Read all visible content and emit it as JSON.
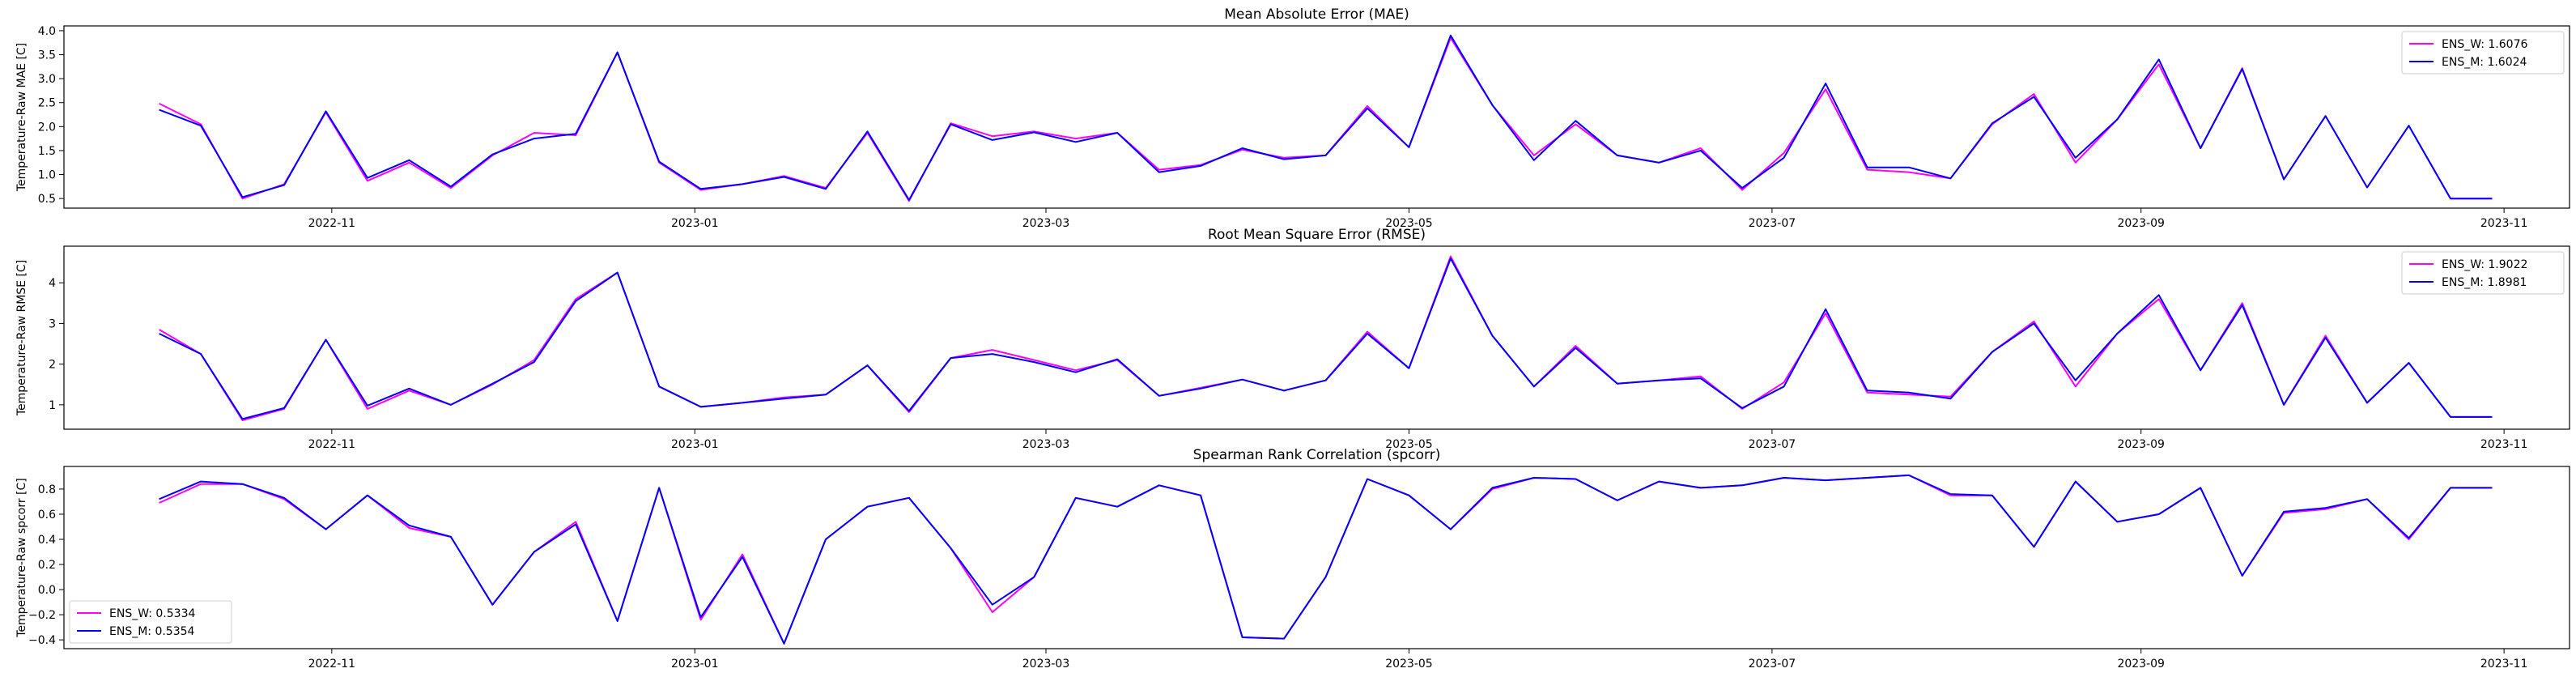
{
  "chart_data": [
    {
      "type": "line",
      "title": "Mean Absolute Error (MAE)",
      "xlabel": "",
      "ylabel": "Temperature-Raw MAE [C]",
      "ylim": [
        0.3,
        4.1
      ],
      "yticks": [
        "0.5",
        "1.0",
        "1.5",
        "2.0",
        "2.5",
        "3.0",
        "3.5",
        "4.0"
      ],
      "ytick_values": [
        0.5,
        1.0,
        1.5,
        2.0,
        2.5,
        3.0,
        3.5,
        4.0
      ],
      "xlim": [
        "2022-09-17",
        "2023-11-12"
      ],
      "xticks": [
        "2022-11",
        "2023-01",
        "2023-03",
        "2023-05",
        "2023-07",
        "2023-09",
        "2023-11"
      ],
      "xtick_dates": [
        "2022-11-01",
        "2023-01-01",
        "2023-03-01",
        "2023-05-01",
        "2023-07-01",
        "2023-09-01",
        "2023-11-01"
      ],
      "grid": false,
      "legend_position": "top-right",
      "x": [
        "2022-10-03",
        "2022-10-10",
        "2022-10-17",
        "2022-10-24",
        "2022-10-31",
        "2022-11-07",
        "2022-11-14",
        "2022-11-21",
        "2022-11-28",
        "2022-12-05",
        "2022-12-12",
        "2022-12-19",
        "2022-12-26",
        "2023-01-02",
        "2023-01-09",
        "2023-01-16",
        "2023-01-23",
        "2023-01-30",
        "2023-02-06",
        "2023-02-13",
        "2023-02-20",
        "2023-02-27",
        "2023-03-06",
        "2023-03-13",
        "2023-03-20",
        "2023-03-27",
        "2023-04-03",
        "2023-04-10",
        "2023-04-17",
        "2023-04-24",
        "2023-05-01",
        "2023-05-08",
        "2023-05-15",
        "2023-05-22",
        "2023-05-29",
        "2023-06-05",
        "2023-06-12",
        "2023-06-19",
        "2023-06-26",
        "2023-07-03",
        "2023-07-10",
        "2023-07-17",
        "2023-07-24",
        "2023-07-31",
        "2023-08-07",
        "2023-08-14",
        "2023-08-21",
        "2023-08-28",
        "2023-09-04",
        "2023-09-11",
        "2023-09-18",
        "2023-09-25",
        "2023-10-02",
        "2023-10-09",
        "2023-10-16",
        "2023-10-23",
        "2023-10-30"
      ],
      "series": [
        {
          "name": "ENS_W: 1.6076",
          "color": "#ff00ff",
          "values": [
            2.48,
            2.05,
            0.5,
            0.8,
            2.3,
            0.87,
            1.25,
            0.72,
            1.4,
            1.87,
            1.82,
            3.55,
            1.25,
            0.68,
            0.8,
            0.97,
            0.72,
            1.87,
            0.45,
            2.07,
            1.8,
            1.9,
            1.75,
            1.87,
            1.1,
            1.2,
            1.52,
            1.35,
            1.4,
            2.43,
            1.57,
            3.85,
            2.45,
            1.4,
            2.05,
            1.4,
            1.25,
            1.55,
            0.68,
            1.45,
            2.78,
            1.1,
            1.05,
            0.92,
            2.05,
            2.68,
            1.25,
            2.15,
            3.3,
            1.55,
            3.22,
            0.9,
            2.22,
            0.73,
            2.02,
            0.5,
            0.5
          ]
        },
        {
          "name": "ENS_M: 1.6024",
          "color": "#0000ff",
          "values": [
            2.35,
            2.02,
            0.53,
            0.78,
            2.32,
            0.93,
            1.3,
            0.75,
            1.42,
            1.75,
            1.85,
            3.55,
            1.27,
            0.7,
            0.8,
            0.95,
            0.7,
            1.9,
            0.47,
            2.05,
            1.72,
            1.88,
            1.68,
            1.87,
            1.05,
            1.18,
            1.55,
            1.32,
            1.4,
            2.38,
            1.57,
            3.9,
            2.45,
            1.3,
            2.12,
            1.4,
            1.25,
            1.5,
            0.72,
            1.35,
            2.9,
            1.15,
            1.15,
            0.92,
            2.07,
            2.62,
            1.35,
            2.15,
            3.4,
            1.55,
            3.2,
            0.9,
            2.22,
            0.73,
            2.02,
            0.5,
            0.5
          ]
        }
      ]
    },
    {
      "type": "line",
      "title": "Root Mean Square Error (RMSE)",
      "xlabel": "",
      "ylabel": "Temperature-Raw RMSE [C]",
      "ylim": [
        0.4,
        4.9
      ],
      "yticks": [
        "1",
        "2",
        "3",
        "4"
      ],
      "ytick_values": [
        1,
        2,
        3,
        4
      ],
      "xlim": [
        "2022-09-17",
        "2023-11-12"
      ],
      "xticks": [
        "2022-11",
        "2023-01",
        "2023-03",
        "2023-05",
        "2023-07",
        "2023-09",
        "2023-11"
      ],
      "xtick_dates": [
        "2022-11-01",
        "2023-01-01",
        "2023-03-01",
        "2023-05-01",
        "2023-07-01",
        "2023-09-01",
        "2023-11-01"
      ],
      "grid": false,
      "legend_position": "top-right",
      "x": [
        "2022-10-03",
        "2022-10-10",
        "2022-10-17",
        "2022-10-24",
        "2022-10-31",
        "2022-11-07",
        "2022-11-14",
        "2022-11-21",
        "2022-11-28",
        "2022-12-05",
        "2022-12-12",
        "2022-12-19",
        "2022-12-26",
        "2023-01-02",
        "2023-01-09",
        "2023-01-16",
        "2023-01-23",
        "2023-01-30",
        "2023-02-06",
        "2023-02-13",
        "2023-02-20",
        "2023-02-27",
        "2023-03-06",
        "2023-03-13",
        "2023-03-20",
        "2023-03-27",
        "2023-04-03",
        "2023-04-10",
        "2023-04-17",
        "2023-04-24",
        "2023-05-01",
        "2023-05-08",
        "2023-05-15",
        "2023-05-22",
        "2023-05-29",
        "2023-06-05",
        "2023-06-12",
        "2023-06-19",
        "2023-06-26",
        "2023-07-03",
        "2023-07-10",
        "2023-07-17",
        "2023-07-24",
        "2023-07-31",
        "2023-08-07",
        "2023-08-14",
        "2023-08-21",
        "2023-08-28",
        "2023-09-04",
        "2023-09-11",
        "2023-09-18",
        "2023-09-25",
        "2023-10-02",
        "2023-10-09",
        "2023-10-16",
        "2023-10-23",
        "2023-10-30"
      ],
      "series": [
        {
          "name": "ENS_W: 1.9022",
          "color": "#ff00ff",
          "values": [
            2.85,
            2.25,
            0.62,
            0.9,
            2.6,
            0.9,
            1.35,
            1.0,
            1.5,
            2.1,
            3.6,
            4.25,
            1.45,
            0.95,
            1.05,
            1.18,
            1.25,
            1.97,
            0.82,
            2.15,
            2.35,
            2.1,
            1.85,
            2.1,
            1.22,
            1.42,
            1.62,
            1.35,
            1.6,
            2.8,
            1.9,
            4.65,
            2.7,
            1.45,
            2.45,
            1.52,
            1.6,
            1.7,
            0.9,
            1.55,
            3.25,
            1.3,
            1.25,
            1.2,
            2.3,
            3.05,
            1.45,
            2.75,
            3.6,
            1.85,
            3.5,
            1.0,
            2.7,
            1.05,
            2.03,
            0.7,
            0.7
          ]
        },
        {
          "name": "ENS_M: 1.8981",
          "color": "#0000ff",
          "values": [
            2.75,
            2.25,
            0.65,
            0.92,
            2.6,
            0.98,
            1.4,
            1.0,
            1.52,
            2.05,
            3.55,
            4.25,
            1.45,
            0.95,
            1.05,
            1.15,
            1.25,
            1.97,
            0.85,
            2.15,
            2.25,
            2.05,
            1.8,
            2.12,
            1.22,
            1.4,
            1.62,
            1.35,
            1.6,
            2.75,
            1.9,
            4.6,
            2.7,
            1.45,
            2.4,
            1.52,
            1.6,
            1.65,
            0.92,
            1.45,
            3.35,
            1.35,
            1.3,
            1.15,
            2.3,
            3.0,
            1.6,
            2.75,
            3.7,
            1.85,
            3.45,
            1.0,
            2.65,
            1.05,
            2.03,
            0.7,
            0.7
          ]
        }
      ]
    },
    {
      "type": "line",
      "title": "Spearman Rank Correlation (spcorr)",
      "xlabel": "",
      "ylabel": "Temperature-Raw spcorr [C]",
      "ylim": [
        -0.47,
        0.98
      ],
      "yticks": [
        "−0.4",
        "−0.2",
        "0.0",
        "0.2",
        "0.4",
        "0.6",
        "0.8"
      ],
      "ytick_values": [
        -0.4,
        -0.2,
        0.0,
        0.2,
        0.4,
        0.6,
        0.8
      ],
      "xlim": [
        "2022-09-17",
        "2023-11-12"
      ],
      "xticks": [
        "2022-11",
        "2023-01",
        "2023-03",
        "2023-05",
        "2023-07",
        "2023-09",
        "2023-11"
      ],
      "xtick_dates": [
        "2022-11-01",
        "2023-01-01",
        "2023-03-01",
        "2023-05-01",
        "2023-07-01",
        "2023-09-01",
        "2023-11-01"
      ],
      "grid": false,
      "legend_position": "bottom-left",
      "x": [
        "2022-10-03",
        "2022-10-10",
        "2022-10-17",
        "2022-10-24",
        "2022-10-31",
        "2022-11-07",
        "2022-11-14",
        "2022-11-21",
        "2022-11-28",
        "2022-12-05",
        "2022-12-12",
        "2022-12-19",
        "2022-12-26",
        "2023-01-02",
        "2023-01-09",
        "2023-01-16",
        "2023-01-23",
        "2023-01-30",
        "2023-02-06",
        "2023-02-13",
        "2023-02-20",
        "2023-02-27",
        "2023-03-06",
        "2023-03-13",
        "2023-03-20",
        "2023-03-27",
        "2023-04-03",
        "2023-04-10",
        "2023-04-17",
        "2023-04-24",
        "2023-05-01",
        "2023-05-08",
        "2023-05-15",
        "2023-05-22",
        "2023-05-29",
        "2023-06-05",
        "2023-06-12",
        "2023-06-19",
        "2023-06-26",
        "2023-07-03",
        "2023-07-10",
        "2023-07-17",
        "2023-07-24",
        "2023-07-31",
        "2023-08-07",
        "2023-08-14",
        "2023-08-21",
        "2023-08-28",
        "2023-09-04",
        "2023-09-11",
        "2023-09-18",
        "2023-09-25",
        "2023-10-02",
        "2023-10-09",
        "2023-10-16",
        "2023-10-23",
        "2023-10-30"
      ],
      "series": [
        {
          "name": "ENS_W: 0.5334",
          "color": "#ff00ff",
          "values": [
            0.69,
            0.84,
            0.84,
            0.72,
            0.48,
            0.75,
            0.49,
            0.42,
            -0.12,
            0.3,
            0.54,
            -0.25,
            0.81,
            -0.24,
            0.28,
            -0.43,
            0.4,
            0.66,
            0.73,
            0.33,
            -0.18,
            0.1,
            0.73,
            0.66,
            0.83,
            0.75,
            -0.38,
            -0.39,
            0.1,
            0.88,
            0.75,
            0.48,
            0.8,
            0.89,
            0.88,
            0.71,
            0.86,
            0.81,
            0.83,
            0.89,
            0.87,
            0.89,
            0.91,
            0.75,
            0.75,
            0.34,
            0.86,
            0.54,
            0.6,
            0.81,
            0.11,
            0.61,
            0.64,
            0.72,
            0.4,
            0.81,
            0.81
          ]
        },
        {
          "name": "ENS_M: 0.5354",
          "color": "#0000ff",
          "values": [
            0.72,
            0.86,
            0.84,
            0.73,
            0.48,
            0.75,
            0.51,
            0.42,
            -0.12,
            0.3,
            0.52,
            -0.25,
            0.81,
            -0.22,
            0.26,
            -0.43,
            0.4,
            0.66,
            0.73,
            0.33,
            -0.12,
            0.1,
            0.73,
            0.66,
            0.83,
            0.75,
            -0.38,
            -0.39,
            0.1,
            0.88,
            0.75,
            0.48,
            0.81,
            0.89,
            0.88,
            0.71,
            0.86,
            0.81,
            0.83,
            0.89,
            0.87,
            0.89,
            0.91,
            0.76,
            0.75,
            0.34,
            0.86,
            0.54,
            0.6,
            0.81,
            0.11,
            0.62,
            0.65,
            0.72,
            0.41,
            0.81,
            0.81
          ]
        }
      ]
    }
  ]
}
